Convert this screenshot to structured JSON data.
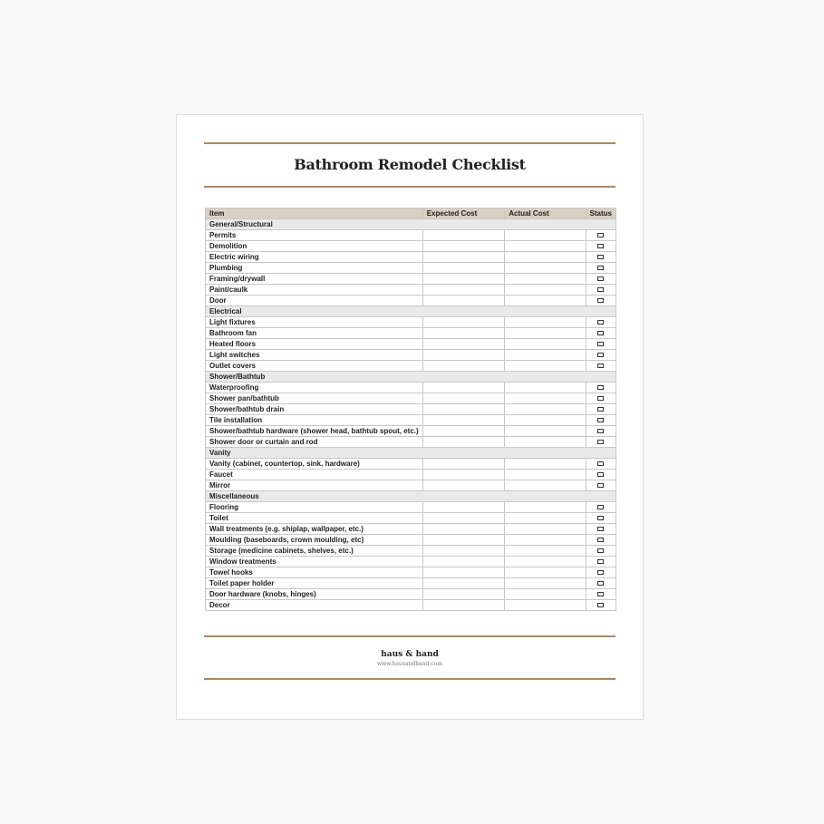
{
  "title": "Bathroom Remodel Checklist",
  "columns": [
    "Item",
    "Expected Cost",
    "Actual Cost",
    "Status"
  ],
  "sections": [
    {
      "name": "General/Structural",
      "items": [
        "Permits",
        "Demolition",
        "Electric wiring",
        "Plumbing",
        "Framing/drywall",
        "Paint/caulk",
        "Door"
      ]
    },
    {
      "name": "Electrical",
      "items": [
        "Light fixtures",
        "Bathroom fan",
        "Heated floors",
        "Light switches",
        "Outlet covers"
      ]
    },
    {
      "name": "Shower/Bathtub",
      "items": [
        "Waterproofing",
        "Shower pan/bathtub",
        "Shower/bathtub drain",
        "Tile installation",
        "Shower/bathtub hardware (shower head, bathtub spout, etc.)",
        "Shower door or curtain and rod"
      ]
    },
    {
      "name": "Vanity",
      "items": [
        "Vanity (cabinet, countertop, sink, hardware)",
        "Faucet",
        "Mirror"
      ]
    },
    {
      "name": "Miscellaneous",
      "items": [
        "Flooring",
        "Toilet",
        "Wall treatments (e.g. shiplap, wallpaper, etc.)",
        "Moulding (baseboards, crown moulding, etc)",
        "Storage (medicine cabinets, shelves, etc.)",
        "Window treatments",
        "Towel hooks",
        "Toilet paper holder",
        "Door hardware (knobs, hinges)",
        "Decor"
      ]
    }
  ],
  "footer": {
    "brand": "haus & hand",
    "url": "www.hausandhand.com"
  },
  "colors": {
    "accent": "#a88b62",
    "header_bg": "#d9cfc3",
    "category_bg": "#e9e9e9"
  }
}
